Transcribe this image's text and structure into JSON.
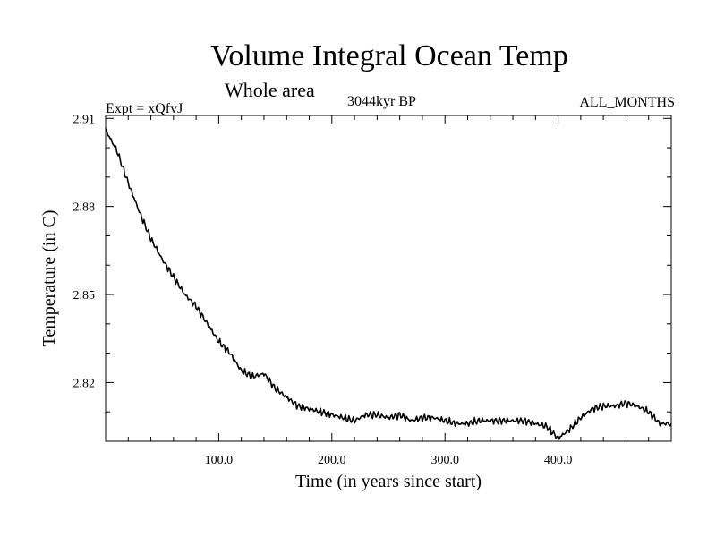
{
  "header": {
    "title": "Volume Integral Ocean Temp",
    "subtitle": "Whole area",
    "experiment": "Expt = xQfvJ",
    "period": "3044kyr BP",
    "months": "ALL_MONTHS"
  },
  "chart_data": {
    "type": "line",
    "title": "Volume Integral Ocean Temp",
    "subtitle": "Whole area",
    "xlabel": "Time (in years since start)",
    "ylabel": "Temperature (in C)",
    "xlim": [
      0,
      500
    ],
    "ylim": [
      2.8,
      2.911
    ],
    "x_ticks": [
      100,
      200,
      300,
      400
    ],
    "x_tick_labels": [
      "100.0",
      "200.0",
      "300.0",
      "400.0"
    ],
    "y_ticks": [
      2.82,
      2.85,
      2.88,
      2.91
    ],
    "y_tick_labels": [
      "2.82",
      "2.85",
      "2.88",
      "2.91"
    ],
    "grid": false,
    "series": [
      {
        "name": "Volume Integral Ocean Temp",
        "x": [
          0,
          10,
          20,
          30,
          40,
          50,
          60,
          70,
          80,
          90,
          100,
          110,
          120,
          130,
          140,
          150,
          160,
          170,
          180,
          190,
          200,
          210,
          220,
          230,
          240,
          250,
          260,
          270,
          280,
          290,
          300,
          310,
          320,
          330,
          340,
          350,
          360,
          370,
          380,
          390,
          400,
          410,
          420,
          430,
          440,
          450,
          460,
          470,
          480,
          490,
          500
        ],
        "values": [
          2.906,
          2.899,
          2.888,
          2.878,
          2.869,
          2.862,
          2.856,
          2.85,
          2.846,
          2.84,
          2.834,
          2.83,
          2.824,
          2.822,
          2.823,
          2.818,
          2.815,
          2.812,
          2.811,
          2.81,
          2.809,
          2.808,
          2.807,
          2.809,
          2.809,
          2.808,
          2.809,
          2.807,
          2.808,
          2.808,
          2.807,
          2.806,
          2.806,
          2.807,
          2.807,
          2.807,
          2.807,
          2.807,
          2.806,
          2.805,
          2.801,
          2.804,
          2.808,
          2.811,
          2.812,
          2.812,
          2.813,
          2.812,
          2.81,
          2.806,
          2.806
        ]
      }
    ]
  }
}
